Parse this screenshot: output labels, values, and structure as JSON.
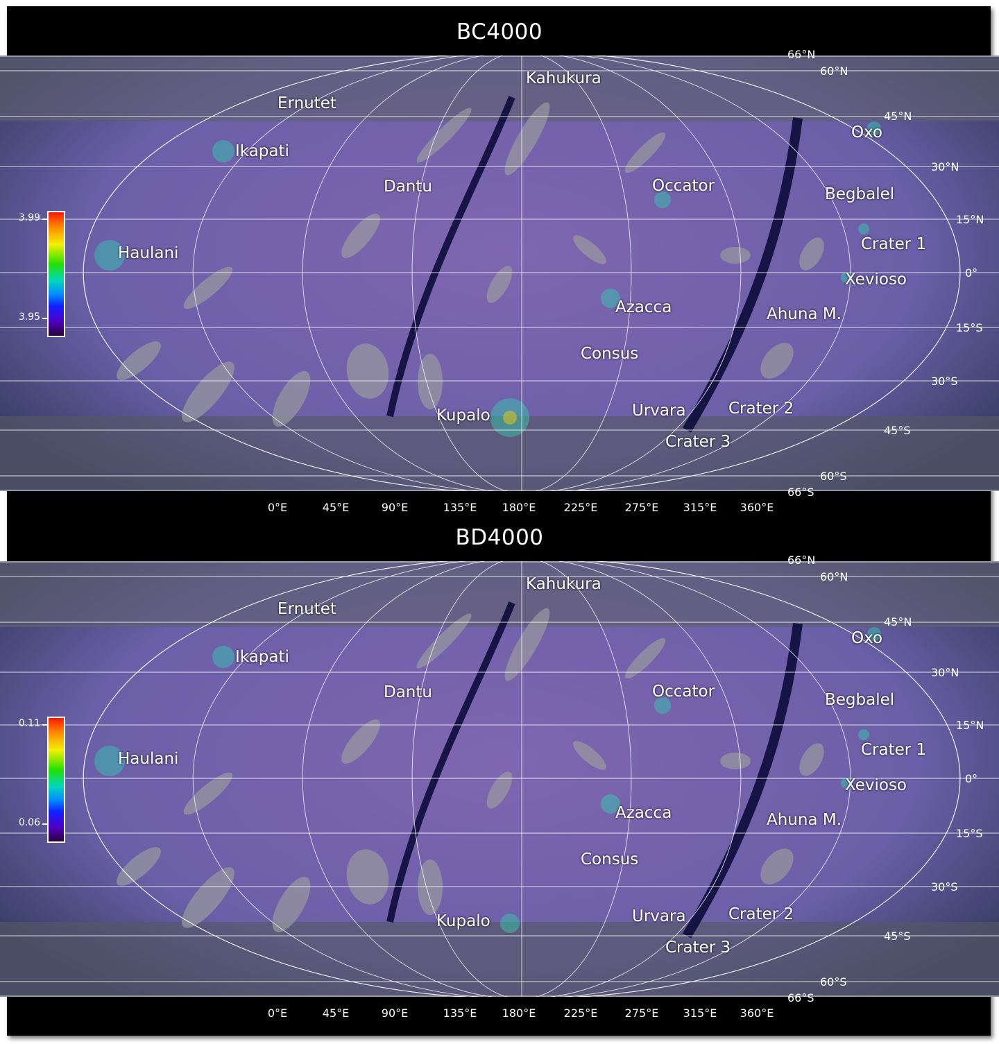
{
  "panels": [
    {
      "title": "BC4000",
      "colorbar": {
        "max_label": "3.99",
        "min_label": "3.95"
      },
      "features": {
        "kahukura": "Kahukura",
        "ernutet": "Ernutet",
        "ikapati": "Ikapati",
        "oxo": "Oxo",
        "dantu": "Dantu",
        "occator": "Occator",
        "begbalel": "Begbalel",
        "haulani": "Haulani",
        "crater1": "Crater 1",
        "xevioso": "Xevioso",
        "azacca": "Azacca",
        "ahuna": "Ahuna M.",
        "consus": "Consus",
        "kupalo": "Kupalo",
        "urvara": "Urvara",
        "crater2": "Crater 2",
        "crater3": "Crater 3"
      }
    },
    {
      "title": "BD4000",
      "colorbar": {
        "max_label": "0.11",
        "min_label": "0.06"
      },
      "features": {
        "kahukura": "Kahukura",
        "ernutet": "Ernutet",
        "ikapati": "Ikapati",
        "oxo": "Oxo",
        "dantu": "Dantu",
        "occator": "Occator",
        "begbalel": "Begbalel",
        "haulani": "Haulani",
        "crater1": "Crater 1",
        "xevioso": "Xevioso",
        "azacca": "Azacca",
        "ahuna": "Ahuna M.",
        "consus": "Consus",
        "kupalo": "Kupalo",
        "urvara": "Urvara",
        "crater2": "Crater 2",
        "crater3": "Crater 3"
      }
    }
  ],
  "lat_labels": {
    "n66": "66°N",
    "n60": "60°N",
    "n45": "45°N",
    "n30": "30°N",
    "n15": "15°N",
    "eq": "0°",
    "s15": "15°S",
    "s30": "30°S",
    "s45": "45°S",
    "s60": "60°S",
    "s66": "66°S"
  },
  "lon_labels": [
    "0°E",
    "45°E",
    "90°E",
    "135°E",
    "180°E",
    "225°E",
    "275°E",
    "315°E",
    "360°E"
  ],
  "colors": {
    "background": "#000000",
    "surface_purple": "#6a5fa8",
    "grid": "#ffffff"
  }
}
